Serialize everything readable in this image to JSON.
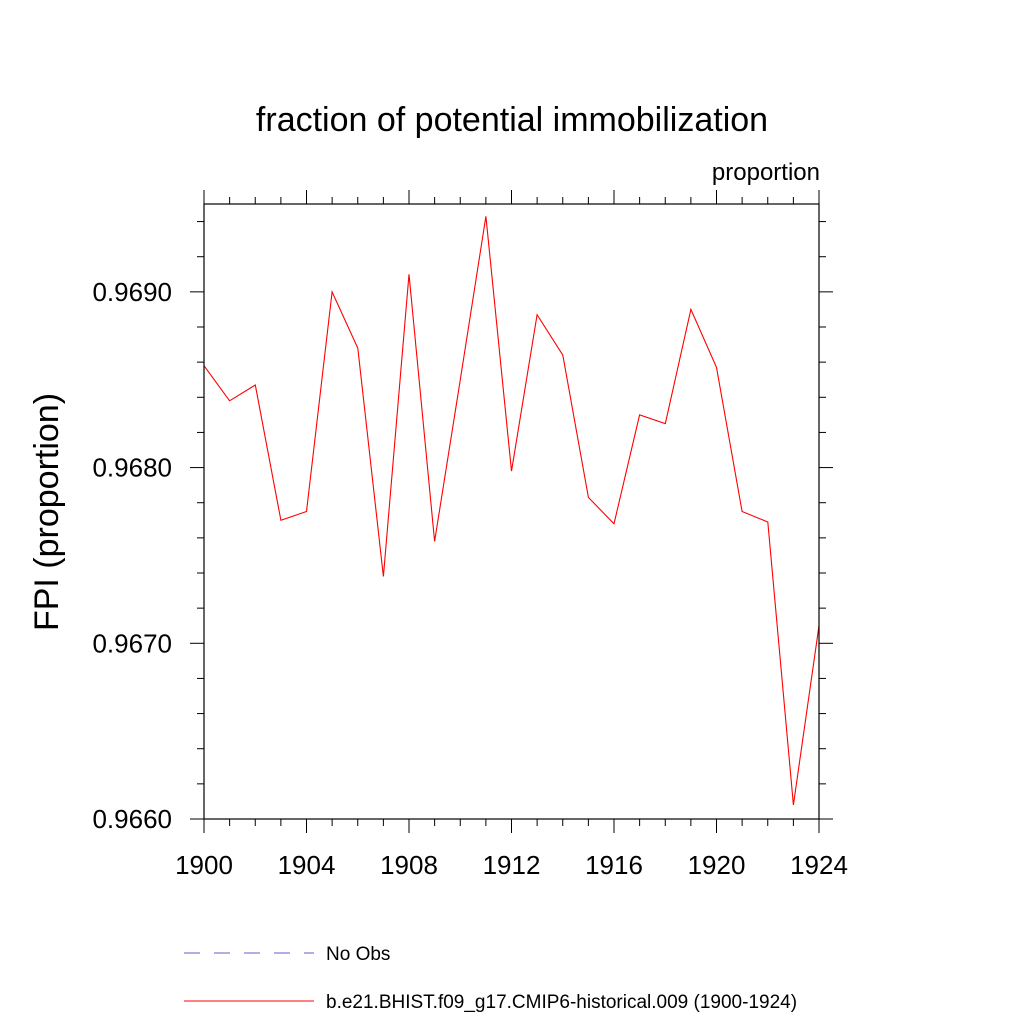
{
  "chart_data": {
    "type": "line",
    "title": "fraction of potential immobilization",
    "units_label": "proportion",
    "xlabel": "",
    "ylabel": "FPI  (proportion)",
    "xlim": [
      1900,
      1924
    ],
    "ylim": [
      0.966,
      0.9695
    ],
    "x_major_ticks": [
      1900,
      1904,
      1908,
      1912,
      1916,
      1920,
      1924
    ],
    "x_minor_ticks": [
      1901,
      1902,
      1903,
      1905,
      1906,
      1907,
      1909,
      1910,
      1911,
      1913,
      1914,
      1915,
      1917,
      1918,
      1919,
      1921,
      1922,
      1923
    ],
    "x_tick_labels": [
      "1900",
      "1904",
      "1908",
      "1912",
      "1916",
      "1920",
      "1924"
    ],
    "y_major_ticks": [
      0.966,
      0.967,
      0.968,
      0.969
    ],
    "y_minor_ticks": [
      0.9662,
      0.9664,
      0.9666,
      0.9668,
      0.9672,
      0.9674,
      0.9676,
      0.9678,
      0.9682,
      0.9684,
      0.9686,
      0.9688,
      0.9692,
      0.9694
    ],
    "y_tick_labels": [
      "0.9660",
      "0.9670",
      "0.9680",
      "0.9690"
    ],
    "grid": false,
    "legend_position": "bottom",
    "series": [
      {
        "name": "b.e21.BHIST.f09_g17.CMIP6-historical.009 (1900-1924)",
        "color": "#ff0000",
        "style": "solid",
        "x": [
          1900,
          1901,
          1902,
          1903,
          1904,
          1905,
          1906,
          1907,
          1908,
          1909,
          1910,
          1911,
          1912,
          1913,
          1914,
          1915,
          1916,
          1917,
          1918,
          1919,
          1920,
          1921,
          1922,
          1923,
          1924
        ],
        "values": [
          0.96858,
          0.96838,
          0.96847,
          0.9677,
          0.96775,
          0.969,
          0.96868,
          0.96738,
          0.9691,
          0.96758,
          0.9685,
          0.96943,
          0.96798,
          0.96887,
          0.96864,
          0.96783,
          0.96768,
          0.9683,
          0.96825,
          0.9689,
          0.96857,
          0.96775,
          0.96769,
          0.96608,
          0.9671
        ]
      }
    ],
    "legend": [
      {
        "label": "No Obs",
        "color": "#6a5acd",
        "style": "dashed"
      },
      {
        "label": "b.e21.BHIST.f09_g17.CMIP6-historical.009 (1900-1924)",
        "color": "#ff0000",
        "style": "solid"
      }
    ]
  }
}
